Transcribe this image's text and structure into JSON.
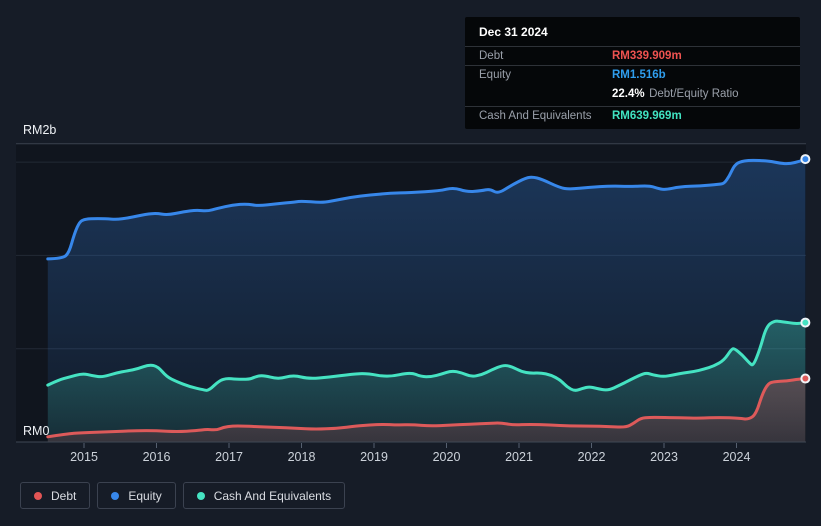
{
  "tooltip": {
    "date": "Dec 31 2024",
    "debt_label": "Debt",
    "debt_value": "RM339.909m",
    "equity_label": "Equity",
    "equity_value": "RM1.516b",
    "ratio_value": "22.4%",
    "ratio_label": "Debt/Equity Ratio",
    "cash_label": "Cash And Equivalents",
    "cash_value": "RM639.969m",
    "debt_color": "#ef5350",
    "equity_color": "#2f9ded",
    "cash_color": "#40e3c2"
  },
  "axis": {
    "y_max_label": "RM2b",
    "y_min_label": "RM0",
    "x_ticks": [
      "2015",
      "2016",
      "2017",
      "2018",
      "2019",
      "2020",
      "2021",
      "2022",
      "2023",
      "2024"
    ]
  },
  "legend": {
    "items": [
      {
        "label": "Debt",
        "color": "#e25555"
      },
      {
        "label": "Equity",
        "color": "#3787ea"
      },
      {
        "label": "Cash And Equivalents",
        "color": "#45e3c2"
      }
    ]
  },
  "chart_data": {
    "type": "area",
    "title": "Debt, Equity and Cash history",
    "currency": "RM",
    "unit": "millions RM",
    "x_axis": "year (decimal)",
    "x_range": [
      2014.5,
      2025.0
    ],
    "ylim": [
      0,
      2000
    ],
    "gridline_values": [
      500,
      1000,
      1500
    ],
    "grid": true,
    "legend_position": "bottom-left",
    "end_markers": true,
    "series": [
      {
        "name": "Equity",
        "color": "#3787ea",
        "points": [
          [
            2014.5,
            981
          ],
          [
            2014.7,
            984
          ],
          [
            2014.79,
            1010
          ],
          [
            2014.87,
            1120
          ],
          [
            2014.94,
            1180
          ],
          [
            2015.0,
            1192
          ],
          [
            2015.08,
            1197
          ],
          [
            2015.3,
            1197
          ],
          [
            2015.45,
            1192
          ],
          [
            2015.6,
            1200
          ],
          [
            2015.86,
            1221
          ],
          [
            2016.0,
            1226
          ],
          [
            2016.15,
            1216
          ],
          [
            2016.38,
            1234
          ],
          [
            2016.55,
            1243
          ],
          [
            2016.7,
            1237
          ],
          [
            2016.84,
            1252
          ],
          [
            2017.05,
            1270
          ],
          [
            2017.25,
            1276
          ],
          [
            2017.4,
            1265
          ],
          [
            2017.65,
            1276
          ],
          [
            2017.92,
            1286
          ],
          [
            2018.0,
            1291
          ],
          [
            2018.26,
            1283
          ],
          [
            2018.4,
            1289
          ],
          [
            2018.67,
            1311
          ],
          [
            2018.95,
            1324
          ],
          [
            2019.22,
            1333
          ],
          [
            2019.5,
            1337
          ],
          [
            2019.9,
            1345
          ],
          [
            2020.1,
            1364
          ],
          [
            2020.28,
            1340
          ],
          [
            2020.48,
            1346
          ],
          [
            2020.6,
            1356
          ],
          [
            2020.71,
            1330
          ],
          [
            2020.9,
            1377
          ],
          [
            2021.1,
            1416
          ],
          [
            2021.19,
            1420
          ],
          [
            2021.31,
            1409
          ],
          [
            2021.56,
            1363
          ],
          [
            2021.7,
            1354
          ],
          [
            2021.97,
            1365
          ],
          [
            2022.26,
            1372
          ],
          [
            2022.53,
            1369
          ],
          [
            2022.8,
            1374
          ],
          [
            2022.9,
            1360
          ],
          [
            2023.01,
            1351
          ],
          [
            2023.22,
            1368
          ],
          [
            2023.5,
            1372
          ],
          [
            2023.76,
            1381
          ],
          [
            2023.83,
            1385
          ],
          [
            2023.9,
            1425
          ],
          [
            2023.97,
            1482
          ],
          [
            2024.04,
            1501
          ],
          [
            2024.18,
            1511
          ],
          [
            2024.45,
            1506
          ],
          [
            2024.6,
            1494
          ],
          [
            2024.73,
            1490
          ],
          [
            2024.88,
            1505
          ],
          [
            2024.95,
            1516
          ]
        ]
      },
      {
        "name": "Cash And Equivalents",
        "color": "#45e3c2",
        "points": [
          [
            2014.5,
            305
          ],
          [
            2014.65,
            332
          ],
          [
            2014.79,
            347
          ],
          [
            2014.98,
            368
          ],
          [
            2015.12,
            354
          ],
          [
            2015.26,
            348
          ],
          [
            2015.44,
            370
          ],
          [
            2015.6,
            381
          ],
          [
            2015.74,
            392
          ],
          [
            2015.9,
            415
          ],
          [
            2016.02,
            404
          ],
          [
            2016.14,
            350
          ],
          [
            2016.28,
            323
          ],
          [
            2016.46,
            296
          ],
          [
            2016.65,
            279
          ],
          [
            2016.72,
            275
          ],
          [
            2016.87,
            330
          ],
          [
            2016.97,
            341
          ],
          [
            2017.1,
            336
          ],
          [
            2017.28,
            336
          ],
          [
            2017.35,
            347
          ],
          [
            2017.46,
            359
          ],
          [
            2017.68,
            336
          ],
          [
            2017.89,
            359
          ],
          [
            2018.1,
            338
          ],
          [
            2018.38,
            348
          ],
          [
            2018.7,
            364
          ],
          [
            2018.9,
            368
          ],
          [
            2019.2,
            347
          ],
          [
            2019.5,
            374
          ],
          [
            2019.65,
            350
          ],
          [
            2019.79,
            350
          ],
          [
            2019.93,
            364
          ],
          [
            2020.07,
            382
          ],
          [
            2020.21,
            371
          ],
          [
            2020.34,
            350
          ],
          [
            2020.48,
            359
          ],
          [
            2020.62,
            386
          ],
          [
            2020.79,
            413
          ],
          [
            2020.9,
            404
          ],
          [
            2021.03,
            377
          ],
          [
            2021.17,
            368
          ],
          [
            2021.3,
            371
          ],
          [
            2021.44,
            359
          ],
          [
            2021.57,
            332
          ],
          [
            2021.66,
            296
          ],
          [
            2021.77,
            272
          ],
          [
            2021.88,
            288
          ],
          [
            2021.97,
            296
          ],
          [
            2022.06,
            288
          ],
          [
            2022.23,
            275
          ],
          [
            2022.39,
            305
          ],
          [
            2022.53,
            332
          ],
          [
            2022.67,
            359
          ],
          [
            2022.76,
            371
          ],
          [
            2022.85,
            359
          ],
          [
            2022.99,
            350
          ],
          [
            2023.13,
            359
          ],
          [
            2023.27,
            371
          ],
          [
            2023.41,
            377
          ],
          [
            2023.55,
            390
          ],
          [
            2023.69,
            407
          ],
          [
            2023.83,
            439
          ],
          [
            2023.93,
            497
          ],
          [
            2023.97,
            502
          ],
          [
            2024.08,
            466
          ],
          [
            2024.18,
            422
          ],
          [
            2024.23,
            407
          ],
          [
            2024.32,
            493
          ],
          [
            2024.41,
            618
          ],
          [
            2024.52,
            650
          ],
          [
            2024.63,
            645
          ],
          [
            2024.82,
            633
          ],
          [
            2024.95,
            640
          ]
        ]
      },
      {
        "name": "Debt",
        "color": "#dd5a5a",
        "points": [
          [
            2014.5,
            28
          ],
          [
            2014.75,
            43
          ],
          [
            2014.98,
            50
          ],
          [
            2015.35,
            55
          ],
          [
            2015.72,
            61
          ],
          [
            2016.0,
            61
          ],
          [
            2016.28,
            55
          ],
          [
            2016.55,
            61
          ],
          [
            2016.69,
            68
          ],
          [
            2016.83,
            64
          ],
          [
            2016.92,
            79
          ],
          [
            2017.05,
            86
          ],
          [
            2017.19,
            86
          ],
          [
            2017.37,
            82
          ],
          [
            2017.65,
            79
          ],
          [
            2017.92,
            73
          ],
          [
            2018.2,
            68
          ],
          [
            2018.48,
            73
          ],
          [
            2018.76,
            86
          ],
          [
            2018.94,
            91
          ],
          [
            2019.13,
            95
          ],
          [
            2019.31,
            91
          ],
          [
            2019.54,
            93
          ],
          [
            2019.78,
            85
          ],
          [
            2020.05,
            91
          ],
          [
            2020.32,
            95
          ],
          [
            2020.6,
            100
          ],
          [
            2020.74,
            103
          ],
          [
            2020.92,
            91
          ],
          [
            2021.15,
            95
          ],
          [
            2021.43,
            91
          ],
          [
            2021.7,
            86
          ],
          [
            2021.98,
            86
          ],
          [
            2022.25,
            82
          ],
          [
            2022.48,
            79
          ],
          [
            2022.58,
            100
          ],
          [
            2022.68,
            128
          ],
          [
            2022.8,
            132
          ],
          [
            2022.94,
            132
          ],
          [
            2023.21,
            130
          ],
          [
            2023.49,
            127
          ],
          [
            2023.76,
            132
          ],
          [
            2024.04,
            127
          ],
          [
            2024.17,
            121
          ],
          [
            2024.27,
            150
          ],
          [
            2024.36,
            261
          ],
          [
            2024.44,
            315
          ],
          [
            2024.52,
            323
          ],
          [
            2024.69,
            327
          ],
          [
            2024.87,
            337
          ],
          [
            2024.95,
            340
          ]
        ]
      }
    ]
  }
}
